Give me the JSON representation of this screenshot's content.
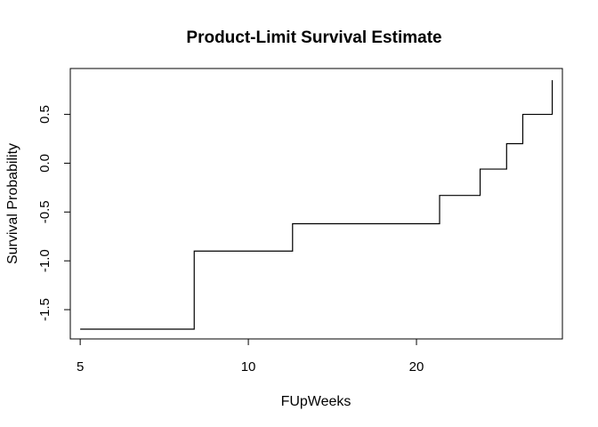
{
  "chart_data": {
    "type": "line",
    "title": "Product-Limit Survival Estimate",
    "xlabel": "FUpWeeks",
    "ylabel": "Survival Probability",
    "x_scale": "log",
    "xlim": [
      4.8,
      36.5
    ],
    "ylim": [
      -1.8,
      0.97
    ],
    "x_ticks": [
      5,
      10,
      20
    ],
    "y_ticks": [
      -1.5,
      -1.0,
      -0.5,
      0.0,
      0.5
    ],
    "x_tick_labels": [
      "5",
      "10",
      "20"
    ],
    "y_tick_labels": [
      "-1.5",
      "-1.0",
      "-0.5",
      "0.0",
      "0.5"
    ],
    "grid": false,
    "legend": "none",
    "series": [
      {
        "step": "post",
        "x": [
          5,
          8,
          12,
          22,
          26,
          29,
          31,
          35
        ],
        "y": [
          -1.7,
          -0.9,
          -0.62,
          -0.33,
          -0.06,
          0.2,
          0.5,
          0.85
        ]
      }
    ]
  }
}
